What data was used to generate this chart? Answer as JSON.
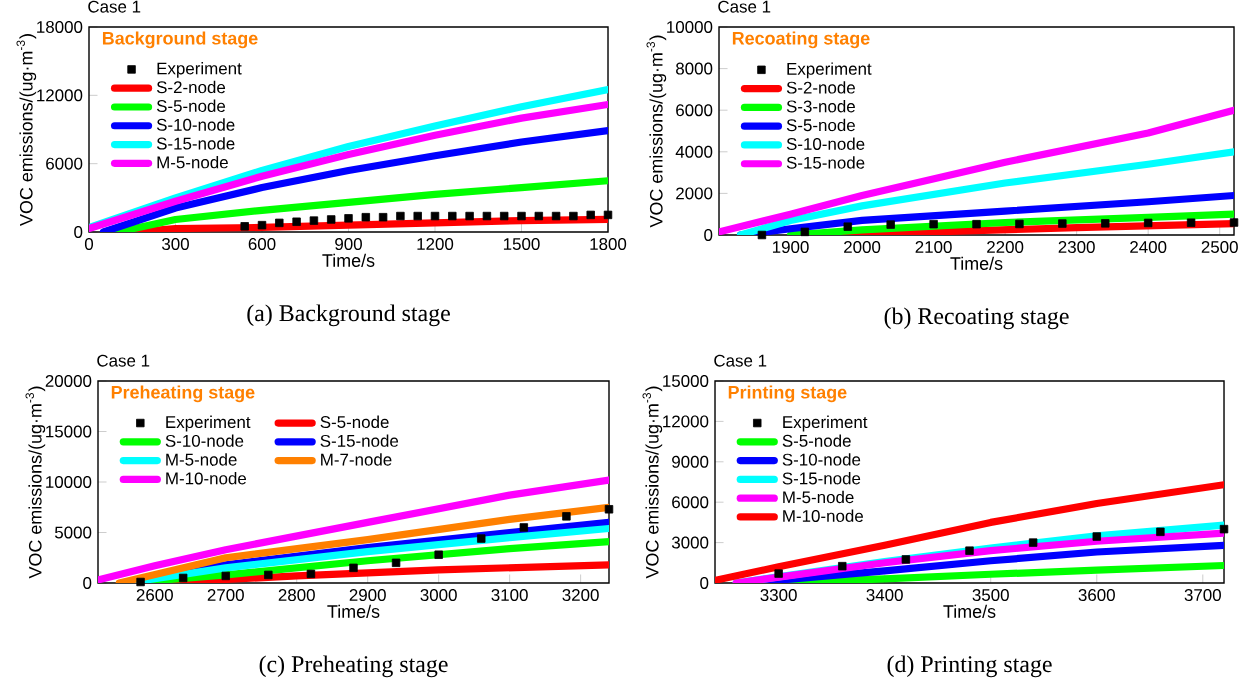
{
  "chart_data": [
    {
      "type": "line",
      "title": "Case 1",
      "legend_title": "Background stage",
      "xlabel": "Time/s",
      "ylabel": "VOC emissions/(ug·m$^{-3}$)",
      "annotations": [
        "(a) Background stage"
      ],
      "xlim": [
        0,
        1800
      ],
      "ylim": [
        0,
        18000
      ],
      "xticks": [
        0,
        300,
        600,
        900,
        1200,
        1500,
        1800
      ],
      "yticks": [
        0,
        6000,
        12000,
        18000
      ],
      "legend": "top left",
      "series": [
        {
          "name": "Experiment",
          "type": "scatter",
          "marker": "square",
          "color": "#000000",
          "x": [
            540,
            600,
            660,
            720,
            780,
            840,
            900,
            960,
            1020,
            1080,
            1140,
            1200,
            1260,
            1320,
            1380,
            1440,
            1500,
            1560,
            1620,
            1680,
            1740,
            1800
          ],
          "values": [
            500,
            600,
            800,
            900,
            1000,
            1100,
            1200,
            1300,
            1300,
            1400,
            1400,
            1400,
            1400,
            1400,
            1400,
            1400,
            1400,
            1400,
            1400,
            1400,
            1500,
            1500
          ]
        },
        {
          "name": "S-2-node",
          "color": "#ff0000",
          "x": [
            150,
            300,
            600,
            900,
            1200,
            1500,
            1800
          ],
          "values": [
            0,
            300,
            400,
            600,
            800,
            1000,
            1100
          ]
        },
        {
          "name": "S-5-node",
          "color": "#00ff00",
          "x": [
            100,
            300,
            600,
            900,
            1200,
            1500,
            1800
          ],
          "values": [
            0,
            1100,
            1900,
            2600,
            3300,
            3900,
            4500
          ]
        },
        {
          "name": "S-10-node",
          "color": "#0000ff",
          "x": [
            50,
            300,
            600,
            900,
            1200,
            1500,
            1800
          ],
          "values": [
            0,
            2100,
            3900,
            5400,
            6700,
            7900,
            8900
          ]
        },
        {
          "name": "S-15-node",
          "color": "#00ffff",
          "x": [
            0,
            300,
            600,
            900,
            1200,
            1500,
            1800
          ],
          "values": [
            400,
            3000,
            5400,
            7500,
            9300,
            11000,
            12500
          ]
        },
        {
          "name": "M-5-node",
          "color": "#ff00ff",
          "x": [
            0,
            300,
            600,
            900,
            1200,
            1500,
            1800
          ],
          "values": [
            300,
            2700,
            4900,
            6800,
            8500,
            10000,
            11200
          ]
        }
      ]
    },
    {
      "type": "line",
      "title": "Case 1",
      "legend_title": "Recoating stage",
      "xlabel": "Time/s",
      "ylabel": "VOC emissions/(ug·m$^{-3}$)",
      "annotations": [
        "(b) Recoating stage"
      ],
      "xlim": [
        1800,
        2520
      ],
      "ylim": [
        0,
        10000
      ],
      "xticks": [
        1900,
        2000,
        2100,
        2200,
        2300,
        2400,
        2500
      ],
      "yticks": [
        0,
        2000,
        4000,
        6000,
        8000,
        10000
      ],
      "legend": "top left",
      "series": [
        {
          "name": "Experiment",
          "type": "scatter",
          "marker": "square",
          "color": "#000000",
          "x": [
            1860,
            1920,
            1980,
            2040,
            2100,
            2160,
            2220,
            2280,
            2340,
            2400,
            2460,
            2520
          ],
          "values": [
            0,
            150,
            400,
            500,
            520,
            520,
            530,
            550,
            560,
            580,
            590,
            600
          ]
        },
        {
          "name": "S-2-node",
          "color": "#ff0000",
          "x": [
            1950,
            2100,
            2300,
            2520
          ],
          "values": [
            0,
            150,
            350,
            550
          ]
        },
        {
          "name": "S-3-node",
          "color": "#00ff00",
          "x": [
            1900,
            2000,
            2200,
            2400,
            2520
          ],
          "values": [
            0,
            250,
            600,
            850,
            1000
          ]
        },
        {
          "name": "S-5-node",
          "color": "#0000ff",
          "x": [
            1830,
            1900,
            2000,
            2200,
            2400,
            2520
          ],
          "values": [
            0,
            300,
            700,
            1150,
            1600,
            1900
          ]
        },
        {
          "name": "S-10-node",
          "color": "#00ffff",
          "x": [
            1830,
            1900,
            2000,
            2200,
            2400,
            2520
          ],
          "values": [
            0,
            700,
            1400,
            2500,
            3400,
            4000
          ]
        },
        {
          "name": "S-15-node",
          "color": "#ff00ff",
          "x": [
            1800,
            1900,
            2000,
            2200,
            2400,
            2520
          ],
          "values": [
            150,
            1000,
            1900,
            3500,
            4900,
            6000
          ]
        }
      ]
    },
    {
      "type": "line",
      "title": "Case 1",
      "legend_title": "Preheating stage",
      "xlabel": "Time/s",
      "ylabel": "VOC emissions/(ug·m$^{-3}$)",
      "annotations": [
        "(c) Preheating stage"
      ],
      "xlim": [
        2520,
        3240
      ],
      "ylim": [
        0,
        20000
      ],
      "xticks": [
        2600,
        2700,
        2800,
        2900,
        3000,
        3100,
        3200
      ],
      "yticks": [
        0,
        5000,
        10000,
        15000,
        20000
      ],
      "legend": "top left",
      "series": [
        {
          "name": "Experiment",
          "type": "scatter",
          "marker": "square",
          "color": "#000000",
          "x": [
            2580,
            2640,
            2700,
            2760,
            2820,
            2880,
            2940,
            3000,
            3060,
            3120,
            3180,
            3240
          ],
          "values": [
            100,
            500,
            700,
            800,
            900,
            1500,
            2000,
            2800,
            4400,
            5500,
            6600,
            7300
          ]
        },
        {
          "name": "S-5-node",
          "color": "#ff0000",
          "x": [
            2600,
            2800,
            3000,
            3240
          ],
          "values": [
            0,
            700,
            1300,
            1800
          ]
        },
        {
          "name": "S-10-node",
          "color": "#00ff00",
          "x": [
            2560,
            2700,
            2900,
            3100,
            3240
          ],
          "values": [
            0,
            800,
            2200,
            3400,
            4100
          ]
        },
        {
          "name": "S-15-node",
          "color": "#0000ff",
          "x": [
            2560,
            2700,
            2900,
            3100,
            3240
          ],
          "values": [
            0,
            1800,
            3500,
            5000,
            6000
          ]
        },
        {
          "name": "M-5-node",
          "color": "#00ffff",
          "x": [
            2560,
            2700,
            2900,
            3100,
            3240
          ],
          "values": [
            0,
            1500,
            3100,
            4500,
            5400
          ]
        },
        {
          "name": "M-7-node",
          "color": "#ff8000",
          "x": [
            2550,
            2700,
            2900,
            3100,
            3240
          ],
          "values": [
            0,
            2500,
            4300,
            6300,
            7500
          ]
        },
        {
          "name": "M-10-node",
          "color": "#ff00ff",
          "x": [
            2520,
            2600,
            2700,
            2900,
            3100,
            3240
          ],
          "values": [
            300,
            1700,
            3300,
            6000,
            8700,
            10200
          ]
        }
      ]
    },
    {
      "type": "line",
      "title": "Case 1",
      "legend_title": "Printing stage",
      "xlabel": "Time/s",
      "ylabel": "VOC emissions/(ug·m$^{-3}$)",
      "annotations": [
        "(d) Printing stage"
      ],
      "xlim": [
        3240,
        3720
      ],
      "ylim": [
        0,
        15000
      ],
      "xticks": [
        3300,
        3400,
        3500,
        3600,
        3700
      ],
      "yticks": [
        0,
        3000,
        6000,
        9000,
        12000,
        15000
      ],
      "legend": "top left",
      "series": [
        {
          "name": "Experiment",
          "type": "scatter",
          "marker": "square",
          "color": "#000000",
          "x": [
            3300,
            3360,
            3420,
            3480,
            3540,
            3600,
            3660,
            3720
          ],
          "values": [
            700,
            1250,
            1750,
            2400,
            3000,
            3450,
            3800,
            4000
          ]
        },
        {
          "name": "S-5-node",
          "color": "#00ff00",
          "x": [
            3280,
            3400,
            3500,
            3600,
            3720
          ],
          "values": [
            0,
            300,
            650,
            950,
            1300
          ]
        },
        {
          "name": "S-10-node",
          "color": "#0000ff",
          "x": [
            3270,
            3400,
            3500,
            3600,
            3720
          ],
          "values": [
            0,
            900,
            1650,
            2300,
            2800
          ]
        },
        {
          "name": "S-15-node",
          "color": "#00ffff",
          "x": [
            3260,
            3400,
            3500,
            3600,
            3720
          ],
          "values": [
            0,
            1600,
            2600,
            3500,
            4300
          ]
        },
        {
          "name": "M-5-node",
          "color": "#ff00ff",
          "x": [
            3260,
            3400,
            3500,
            3600,
            3720
          ],
          "values": [
            0,
            1500,
            2400,
            3100,
            3700
          ]
        },
        {
          "name": "M-10-node",
          "color": "#ff0000",
          "x": [
            3240,
            3300,
            3400,
            3500,
            3600,
            3720
          ],
          "values": [
            200,
            1200,
            2800,
            4500,
            5900,
            7300
          ]
        }
      ]
    }
  ]
}
